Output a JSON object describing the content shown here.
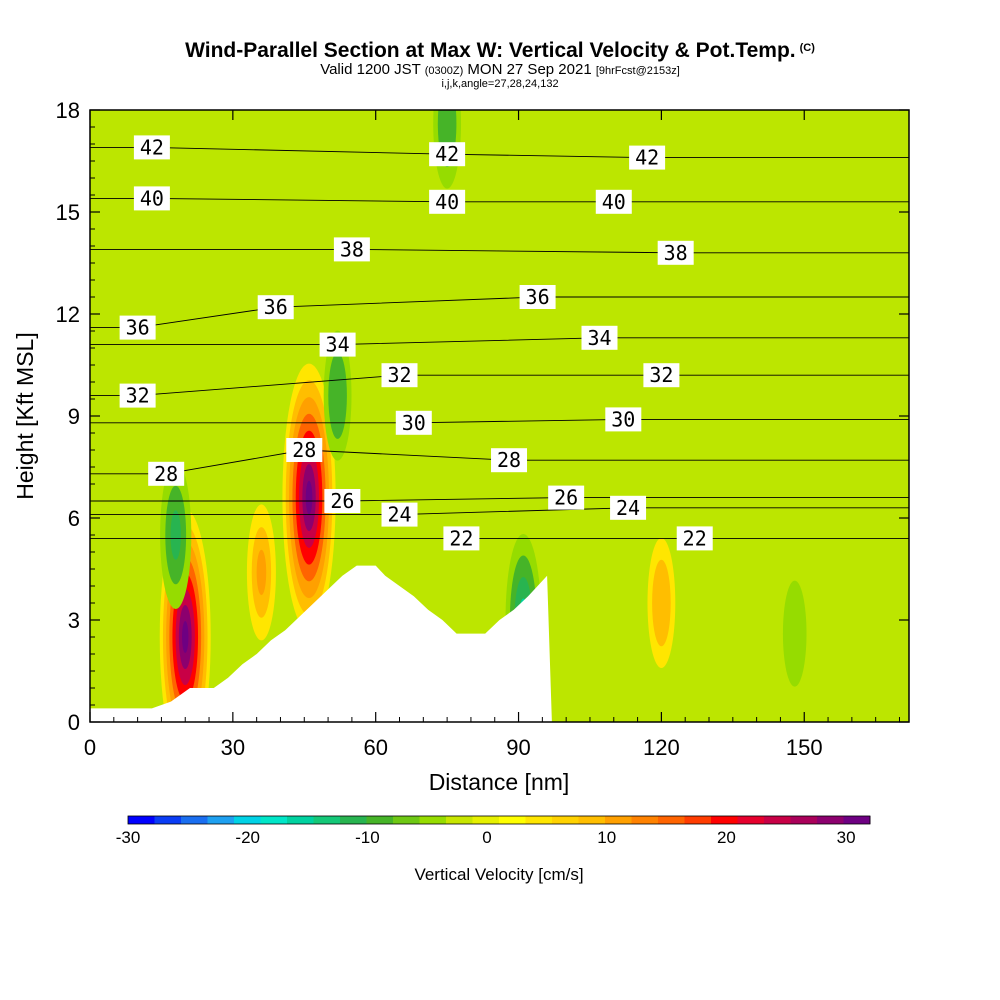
{
  "chart_data": {
    "type": "heatmap",
    "title": "Wind-Parallel Section at Max W: Vertical Velocity & Pot.Temp.",
    "title_mark": "(C)",
    "subtitle_parts": [
      "Valid 1200 JST",
      "(0300Z)",
      "MON 27 Sep 2021",
      "[9hrFcst@2153z]"
    ],
    "subtitle2": "i,j,k,angle=27,28,24,132",
    "xlabel": "Distance [nm]",
    "ylabel": "Height [Kft MSL]",
    "xlim": [
      0,
      172
    ],
    "ylim": [
      0,
      18
    ],
    "x_ticks": [
      0,
      30,
      60,
      90,
      120,
      150
    ],
    "y_ticks": [
      0,
      3,
      6,
      9,
      12,
      15,
      18
    ],
    "grid": false,
    "colorbar": {
      "title": "Vertical Velocity [cm/s]",
      "range": [
        -30,
        32
      ],
      "tick_values": [
        -30,
        -20,
        -10,
        0,
        10,
        20,
        30
      ],
      "colors": [
        "#0000ff",
        "#0a3cf5",
        "#1a6ef0",
        "#1ea0f0",
        "#00d2e6",
        "#00e6c8",
        "#00d2a0",
        "#14c878",
        "#28b450",
        "#46b428",
        "#6ec814",
        "#96dc00",
        "#c8e600",
        "#e6f000",
        "#ffff00",
        "#ffe600",
        "#ffd200",
        "#ffbe00",
        "#ffa000",
        "#ff8200",
        "#ff6400",
        "#ff3c00",
        "#ff0000",
        "#e6002d",
        "#c80046",
        "#aa005a",
        "#8c006e",
        "#6e0082"
      ]
    },
    "terrain": [
      [
        0,
        0.4
      ],
      [
        13,
        0.4
      ],
      [
        17,
        0.6
      ],
      [
        21,
        1.0
      ],
      [
        26,
        1.0
      ],
      [
        29,
        1.3
      ],
      [
        32,
        1.7
      ],
      [
        35,
        2.0
      ],
      [
        38,
        2.4
      ],
      [
        41,
        2.7
      ],
      [
        44,
        3.1
      ],
      [
        47,
        3.5
      ],
      [
        50,
        3.9
      ],
      [
        53,
        4.3
      ],
      [
        56,
        4.6
      ],
      [
        60,
        4.6
      ],
      [
        62,
        4.3
      ],
      [
        65,
        4.0
      ],
      [
        68,
        3.7
      ],
      [
        71,
        3.3
      ],
      [
        74,
        3.0
      ],
      [
        77,
        2.6
      ],
      [
        80,
        2.6
      ],
      [
        83,
        2.6
      ],
      [
        86,
        3.0
      ],
      [
        89,
        3.3
      ],
      [
        92,
        3.7
      ],
      [
        94,
        4.0
      ],
      [
        96,
        4.3
      ],
      [
        97,
        0
      ],
      [
        172,
        0
      ],
      [
        172,
        -0.2
      ],
      [
        0,
        -0.2
      ]
    ],
    "contour_labels": [
      {
        "text": "42",
        "x": 13,
        "y": 16.9
      },
      {
        "text": "42",
        "x": 75,
        "y": 16.7
      },
      {
        "text": "42",
        "x": 117,
        "y": 16.6
      },
      {
        "text": "40",
        "x": 13,
        "y": 15.4
      },
      {
        "text": "40",
        "x": 75,
        "y": 15.3
      },
      {
        "text": "40",
        "x": 110,
        "y": 15.3
      },
      {
        "text": "38",
        "x": 55,
        "y": 13.9
      },
      {
        "text": "38",
        "x": 123,
        "y": 13.8
      },
      {
        "text": "36",
        "x": 10,
        "y": 11.6
      },
      {
        "text": "36",
        "x": 39,
        "y": 12.2
      },
      {
        "text": "36",
        "x": 94,
        "y": 12.5
      },
      {
        "text": "34",
        "x": 52,
        "y": 11.1
      },
      {
        "text": "34",
        "x": 107,
        "y": 11.3
      },
      {
        "text": "32",
        "x": 10,
        "y": 9.6
      },
      {
        "text": "32",
        "x": 65,
        "y": 10.2
      },
      {
        "text": "32",
        "x": 120,
        "y": 10.2
      },
      {
        "text": "30",
        "x": 68,
        "y": 8.8
      },
      {
        "text": "30",
        "x": 112,
        "y": 8.9
      },
      {
        "text": "28",
        "x": 16,
        "y": 7.3
      },
      {
        "text": "28",
        "x": 45,
        "y": 8.0
      },
      {
        "text": "28",
        "x": 88,
        "y": 7.7
      },
      {
        "text": "26",
        "x": 53,
        "y": 6.5
      },
      {
        "text": "26",
        "x": 100,
        "y": 6.6
      },
      {
        "text": "24",
        "x": 65,
        "y": 6.1
      },
      {
        "text": "24",
        "x": 113,
        "y": 6.3
      },
      {
        "text": "22",
        "x": 78,
        "y": 5.4
      },
      {
        "text": "22",
        "x": 127,
        "y": 5.4
      }
    ],
    "w_features": [
      {
        "x": 20,
        "y": 2.5,
        "value": 30
      },
      {
        "x": 46,
        "y": 6.6,
        "value": 32
      },
      {
        "x": 91,
        "y": 3.0,
        "value": -16
      },
      {
        "x": 18,
        "y": 5.5,
        "value": -12
      },
      {
        "x": 52,
        "y": 9.6,
        "value": -9
      },
      {
        "x": 36,
        "y": 4.4,
        "value": 10
      },
      {
        "x": 120,
        "y": 3.5,
        "value": 9
      },
      {
        "x": 148,
        "y": 2.6,
        "value": -5
      },
      {
        "x": 75,
        "y": 17.6,
        "value": -9
      }
    ]
  }
}
